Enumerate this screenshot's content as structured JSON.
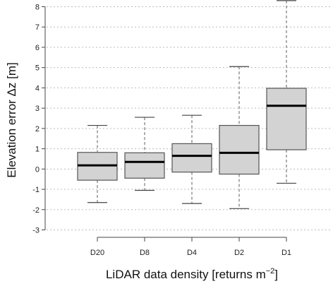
{
  "chart_data": {
    "type": "box",
    "xlabel_main": "LiDAR data density [returns m",
    "xlabel_sup": "−2",
    "xlabel_end": "]",
    "ylabel": "Elevation error Δz [m]",
    "ylim": [
      -3.6,
      8.4
    ],
    "yticks": [
      -3,
      -2,
      -1,
      0,
      1,
      2,
      3,
      4,
      5,
      6,
      7,
      8
    ],
    "grid": "horizontal dotted",
    "categories": [
      "D20",
      "D8",
      "D4",
      "D2",
      "D1"
    ],
    "boxes": [
      {
        "name": "D20",
        "whisker_low": -1.65,
        "q1": -0.55,
        "median": 0.18,
        "q3": 0.82,
        "whisker_high": 2.15
      },
      {
        "name": "D8",
        "whisker_low": -1.05,
        "q1": -0.45,
        "median": 0.35,
        "q3": 0.8,
        "whisker_high": 2.55
      },
      {
        "name": "D4",
        "whisker_low": -1.7,
        "q1": -0.15,
        "median": 0.65,
        "q3": 1.25,
        "whisker_high": 2.65
      },
      {
        "name": "D2",
        "whisker_low": -1.95,
        "q1": -0.25,
        "median": 0.8,
        "q3": 2.15,
        "whisker_high": 5.05
      },
      {
        "name": "D1",
        "whisker_low": -0.7,
        "q1": 0.95,
        "median": 3.12,
        "q3": 3.98,
        "whisker_high": 8.3
      }
    ],
    "colors": {
      "box_fill": "#d3d3d3",
      "box_stroke": "#555555",
      "median": "#000000",
      "whisker": "#777777",
      "grid": "#bbbbbb"
    }
  }
}
